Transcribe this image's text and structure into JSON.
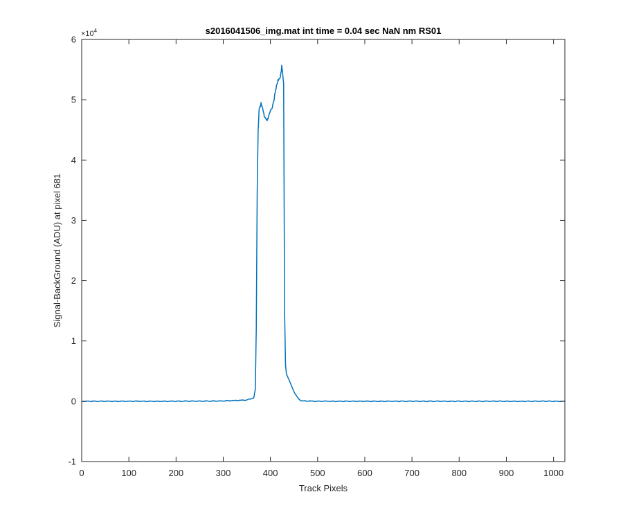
{
  "chart_data": {
    "type": "line",
    "title": "s2016041506_img.mat int time = 0.04 sec  NaN nm RS01",
    "xlabel": "Track Pixels",
    "ylabel": "Signal-BackGround (ADU) at pixel 681",
    "xlim": [
      0,
      1024
    ],
    "ylim": [
      -10000,
      60000
    ],
    "x_ticks": [
      0,
      100,
      200,
      300,
      400,
      500,
      600,
      700,
      800,
      900,
      1000
    ],
    "x_tick_labels": [
      "0",
      "100",
      "200",
      "300",
      "400",
      "500",
      "600",
      "700",
      "800",
      "900",
      "1000"
    ],
    "y_ticks": [
      -10000,
      0,
      10000,
      20000,
      30000,
      40000,
      50000,
      60000
    ],
    "y_tick_labels": [
      "-1",
      "0",
      "1",
      "2",
      "3",
      "4",
      "5",
      "6"
    ],
    "y_exponent_label": "×10",
    "y_exponent_power": "4",
    "grid": false,
    "line_color": "#0072BD",
    "series": [
      {
        "x": [
          0,
          100,
          200,
          300,
          350,
          365,
          368,
          370,
          372,
          374,
          376,
          378,
          380,
          383,
          386,
          390,
          394,
          398,
          402,
          406,
          410,
          414,
          418,
          421,
          424,
          426,
          428,
          430,
          432,
          434,
          437,
          440,
          445,
          450,
          455,
          460,
          465,
          470,
          500,
          600,
          700,
          800,
          900,
          1000,
          1024
        ],
        "y": [
          0,
          0,
          0,
          50,
          200,
          600,
          2000,
          12000,
          35000,
          45000,
          48500,
          49000,
          49300,
          48500,
          47500,
          47200,
          46500,
          47500,
          48500,
          49500,
          51000,
          52500,
          53500,
          54000,
          55500,
          54000,
          52500,
          15000,
          6000,
          4500,
          4000,
          3400,
          2500,
          1600,
          900,
          400,
          100,
          50,
          0,
          0,
          0,
          0,
          0,
          0,
          0
        ]
      }
    ]
  }
}
